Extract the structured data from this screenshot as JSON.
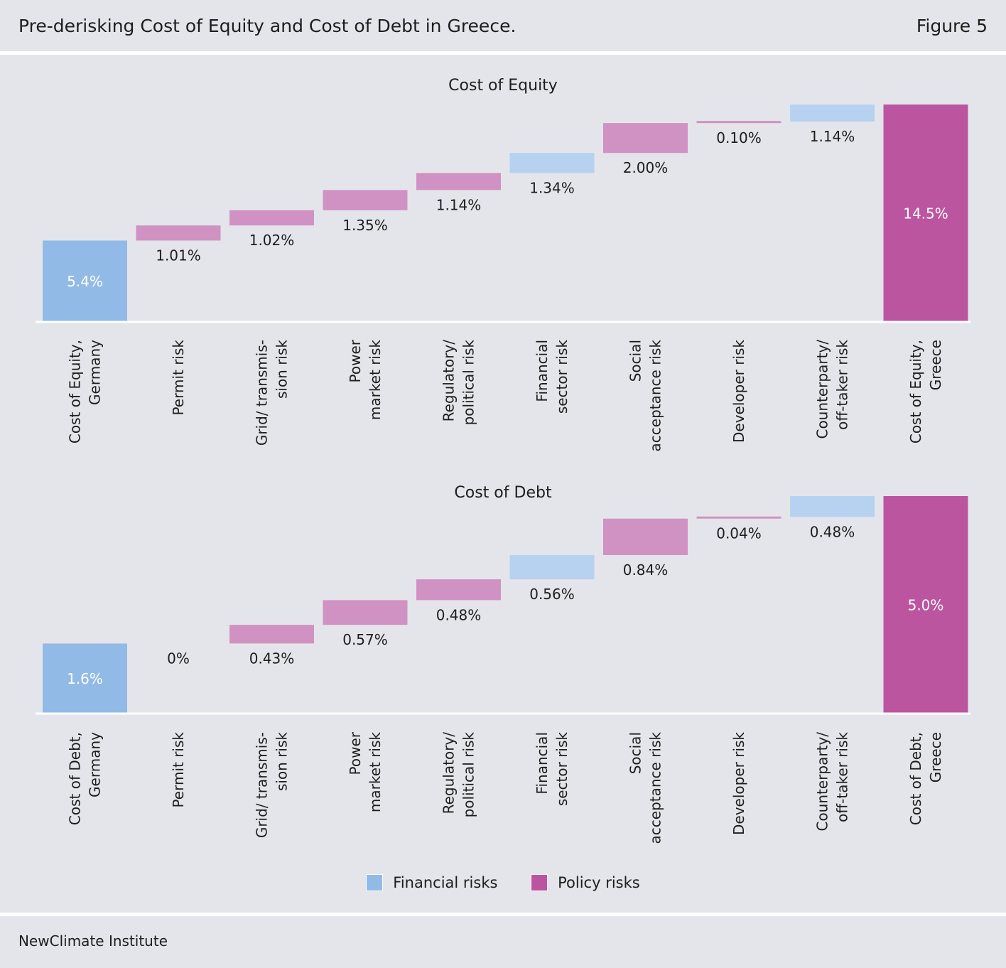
{
  "header": {
    "title": "Pre-derisking Cost of Equity and Cost of Debt in Greece.",
    "figure": "Figure 5"
  },
  "footer": {
    "source": "NewClimate Institute"
  },
  "colors": {
    "financial": "#91bbe6",
    "financial_light": "#b6d2f0",
    "policy": "#bc55a0",
    "policy_light": "#cf92c2",
    "axis": "#ffffff"
  },
  "legend": [
    {
      "label": "Financial risks",
      "color": "#91bbe6"
    },
    {
      "label": "Policy risks",
      "color": "#bc55a0"
    }
  ],
  "chart_data": [
    {
      "type": "bar",
      "subtype": "waterfall",
      "title": "Cost of Equity",
      "categories": [
        "Cost of Equity,\nGermany",
        "Permit risk",
        "Grid/ transmis-\nsion risk",
        "Power\nmarket risk",
        "Regulatory/\npolitical risk",
        "Financial\nsector risk",
        "Social\nacceptance risk",
        "Developer risk",
        "Counterparty/\noff-taker risk",
        "Cost of Equity,\nGreece"
      ],
      "values": [
        5.4,
        1.01,
        1.02,
        1.35,
        1.14,
        1.34,
        2.0,
        0.1,
        1.14,
        14.5
      ],
      "labels": [
        "5.4%",
        "1.01%",
        "1.02%",
        "1.35%",
        "1.14%",
        "1.34%",
        "2.00%",
        "0.10%",
        "1.14%",
        "14.5%"
      ],
      "kinds": [
        "total-financial",
        "policy",
        "policy",
        "policy",
        "policy",
        "financial",
        "policy",
        "policy",
        "financial",
        "total-policy"
      ],
      "ylim": [
        0,
        14.6
      ]
    },
    {
      "type": "bar",
      "subtype": "waterfall",
      "title": "Cost of Debt",
      "categories": [
        "Cost of Debt,\nGermany",
        "Permit risk",
        "Grid/ transmis-\nsion risk",
        "Power\nmarket risk",
        "Regulatory/\npolitical risk",
        "Financial\nsector risk",
        "Social\nacceptance risk",
        "Developer risk",
        "Counterparty/\noff-taker risk",
        "Cost of Debt,\nGreece"
      ],
      "values": [
        1.6,
        0,
        0.43,
        0.57,
        0.48,
        0.56,
        0.84,
        0.04,
        0.48,
        5.0
      ],
      "labels": [
        "1.6%",
        "0%",
        "0.43%",
        "0.57%",
        "0.48%",
        "0.56%",
        "0.84%",
        "0.04%",
        "0.48%",
        "5.0%"
      ],
      "kinds": [
        "total-financial",
        "policy",
        "policy",
        "policy",
        "policy",
        "financial",
        "policy",
        "policy",
        "financial",
        "total-policy"
      ],
      "ylim": [
        0,
        5.0
      ]
    }
  ]
}
